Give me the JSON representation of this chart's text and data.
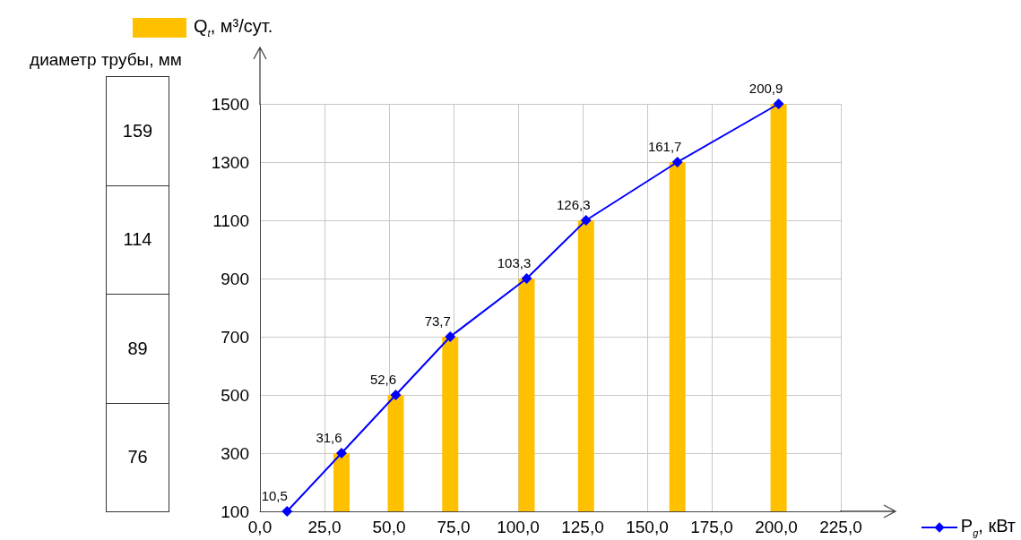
{
  "chart_data": {
    "type": "bar",
    "annotations": [
      "диаметр трубы, мм",
      "159",
      "114",
      "89",
      "76",
      {
        "text": "10,5",
        "x": 10.5,
        "y": 100
      },
      {
        "text": "31,6",
        "x": 31.6,
        "y": 300
      },
      {
        "text": "52,6",
        "x": 52.6,
        "y": 500
      },
      {
        "text": "73,7",
        "x": 73.7,
        "y": 700
      },
      {
        "text": "103,3",
        "x": 103.3,
        "y": 900
      },
      {
        "text": "126,3",
        "x": 126.3,
        "y": 1100
      },
      {
        "text": "161,7",
        "x": 161.7,
        "y": 1300
      },
      {
        "text": "200,9",
        "x": 200.9,
        "y": 1500
      }
    ],
    "xlim": [
      0,
      225
    ],
    "xticks": [
      {
        "value": 0,
        "label": "0,0"
      },
      {
        "value": 25,
        "label": "25,0"
      },
      {
        "value": 50,
        "label": "50,0"
      },
      {
        "value": 75,
        "label": "75,0"
      },
      {
        "value": 100,
        "label": "100,0"
      },
      {
        "value": 125,
        "label": "125,0"
      },
      {
        "value": 150,
        "label": "150,0"
      },
      {
        "value": 175,
        "label": "175,0"
      },
      {
        "value": 200,
        "label": "200,0"
      },
      {
        "value": 225,
        "label": "225,0"
      }
    ],
    "ylim": [
      100,
      1500
    ],
    "yticks": [
      100,
      300,
      500,
      700,
      900,
      1100,
      1300,
      1500
    ],
    "grid": true,
    "legend": "top left",
    "series": [
      {
        "name": "Q$_{t}$, м³/сут.",
        "color": "#ffc000",
        "x": [
          31.6,
          52.6,
          73.7,
          103.3,
          126.3,
          161.7,
          200.9
        ],
        "values": [
          300,
          500,
          700,
          900,
          1100,
          1300,
          1500
        ]
      },
      {
        "type": "line",
        "name": "P$_{g}$, кВт",
        "color": "#0000ff",
        "marker": "diamond",
        "line_style": "solid",
        "x": [
          10.5,
          31.6,
          52.6,
          73.7,
          103.3,
          126.3,
          161.7,
          200.9
        ],
        "values": [
          100,
          300,
          500,
          700,
          900,
          1100,
          1300,
          1500
        ]
      }
    ]
  }
}
